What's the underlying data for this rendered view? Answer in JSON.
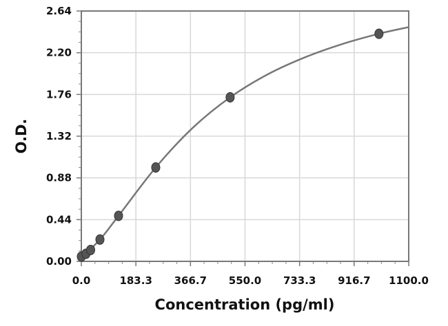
{
  "chart_data": {
    "type": "scatter",
    "title": "",
    "xlabel": "Concentration (pg/ml)",
    "ylabel": "O.D.",
    "xlim": [
      0,
      1100
    ],
    "ylim": [
      0,
      2.64
    ],
    "xticks": [
      "0.0",
      "183.3",
      "366.7",
      "550.0",
      "733.3",
      "916.7",
      "1100.0"
    ],
    "yticks": [
      "0.00",
      "0.44",
      "0.88",
      "1.32",
      "1.76",
      "2.20",
      "2.64"
    ],
    "grid": true,
    "points": {
      "x": [
        0,
        15.6,
        31.25,
        62.5,
        125,
        250,
        500,
        1000
      ],
      "y": [
        0.05,
        0.08,
        0.12,
        0.23,
        0.48,
        0.99,
        1.73,
        2.4
      ]
    },
    "fit_curve": {
      "x": [
        0,
        62.5,
        125,
        250,
        375,
        500,
        625,
        750,
        875,
        1000,
        1100
      ],
      "y": [
        0.04,
        0.23,
        0.48,
        0.99,
        1.41,
        1.73,
        1.97,
        2.15,
        2.29,
        2.4,
        2.47
      ]
    },
    "colors": {
      "curve": "#777777",
      "point": "#555555",
      "grid": "#d8d8d8",
      "frame": "#777777"
    }
  }
}
